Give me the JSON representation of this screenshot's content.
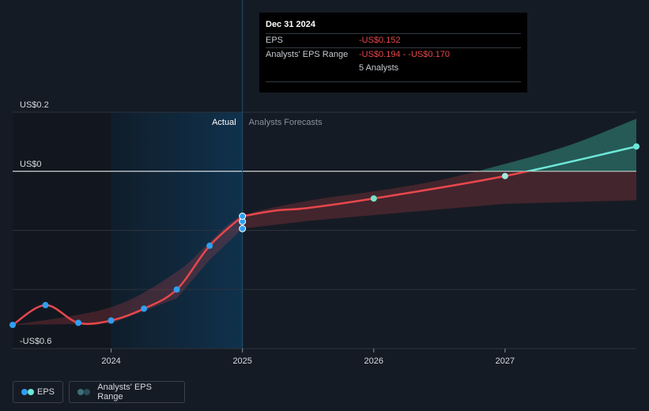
{
  "tooltip": {
    "date": "Dec 31 2024",
    "eps_label": "EPS",
    "eps_value": "-US$0.152",
    "range_label": "Analysts' EPS Range",
    "range_value": "-US$0.194 - -US$0.170",
    "analysts": "5 Analysts"
  },
  "region_labels": {
    "actual": "Actual",
    "forecast": "Analysts Forecasts"
  },
  "legend": {
    "eps": "EPS",
    "range": "Analysts' EPS Range"
  },
  "colors": {
    "background": "#151b24",
    "eps_negative": "#e8474c",
    "eps_positive": "#6ee7d8",
    "actual_point": "#2f9ff0",
    "range_negative": "#e8474c",
    "range_positive": "#3fb8a3",
    "highlight": "#0f2d45"
  },
  "chart_data": {
    "type": "line",
    "y_axis_labels": [
      {
        "label": "US$0.2",
        "value": 0.2
      },
      {
        "label": "US$0",
        "value": 0
      },
      {
        "label": "-US$0.6",
        "value": -0.6
      }
    ],
    "ylim": [
      -0.6,
      0.2
    ],
    "xlim": [
      2023.25,
      2028.0
    ],
    "x_ticks": [
      {
        "label": "2024",
        "value": 2024
      },
      {
        "label": "2025",
        "value": 2025
      },
      {
        "label": "2026",
        "value": 2026
      },
      {
        "label": "2027",
        "value": 2027
      }
    ],
    "gridlines": [
      0.2,
      -0.2,
      -0.4,
      -0.6
    ],
    "zero_line": 0,
    "actual_end": 2025,
    "highlight_range": [
      2024,
      2025
    ],
    "series": [
      {
        "name": "EPS",
        "actual": [
          {
            "x": 2023.25,
            "y": -0.52
          },
          {
            "x": 2023.5,
            "y": -0.453
          },
          {
            "x": 2023.75,
            "y": -0.513
          },
          {
            "x": 2024.0,
            "y": -0.505
          },
          {
            "x": 2024.25,
            "y": -0.465
          },
          {
            "x": 2024.5,
            "y": -0.4
          },
          {
            "x": 2024.75,
            "y": -0.252
          },
          {
            "x": 2025.0,
            "y": -0.152
          }
        ],
        "extra_points": [
          {
            "x": 2025.0,
            "y": -0.17
          },
          {
            "x": 2025.0,
            "y": -0.194
          }
        ],
        "forecast": [
          {
            "x": 2025.0,
            "y": -0.152
          },
          {
            "x": 2025.25,
            "y": -0.133
          },
          {
            "x": 2025.5,
            "y": -0.124
          },
          {
            "x": 2026.0,
            "y": -0.092
          },
          {
            "x": 2027.0,
            "y": -0.016
          },
          {
            "x": 2028.0,
            "y": 0.084
          }
        ],
        "forecast_markers": [
          {
            "x": 2026.0,
            "y": -0.092
          },
          {
            "x": 2027.0,
            "y": -0.016
          },
          {
            "x": 2028.0,
            "y": 0.084
          }
        ]
      }
    ],
    "range_band": {
      "name": "Analysts' EPS Range",
      "upper": [
        {
          "x": 2023.25,
          "y": -0.52
        },
        {
          "x": 2024.0,
          "y": -0.46
        },
        {
          "x": 2024.5,
          "y": -0.34
        },
        {
          "x": 2024.75,
          "y": -0.24
        },
        {
          "x": 2025.0,
          "y": -0.152
        },
        {
          "x": 2025.5,
          "y": -0.1
        },
        {
          "x": 2026.0,
          "y": -0.068
        },
        {
          "x": 2026.5,
          "y": -0.03
        },
        {
          "x": 2027.0,
          "y": 0.025
        },
        {
          "x": 2027.5,
          "y": 0.09
        },
        {
          "x": 2028.0,
          "y": 0.178
        }
      ],
      "lower": [
        {
          "x": 2023.25,
          "y": -0.52
        },
        {
          "x": 2024.0,
          "y": -0.515
        },
        {
          "x": 2024.5,
          "y": -0.43
        },
        {
          "x": 2024.75,
          "y": -0.3
        },
        {
          "x": 2025.0,
          "y": -0.194
        },
        {
          "x": 2025.5,
          "y": -0.168
        },
        {
          "x": 2026.0,
          "y": -0.148
        },
        {
          "x": 2027.0,
          "y": -0.11
        },
        {
          "x": 2028.0,
          "y": -0.098
        }
      ]
    }
  }
}
